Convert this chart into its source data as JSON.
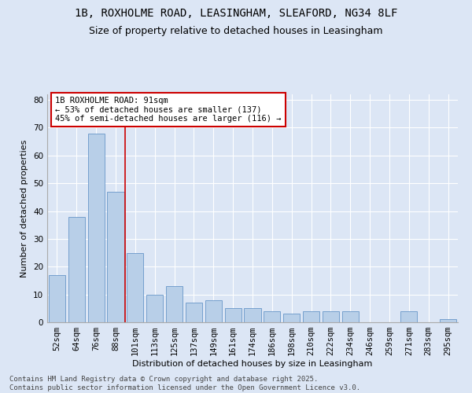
{
  "title_line1": "1B, ROXHOLME ROAD, LEASINGHAM, SLEAFORD, NG34 8LF",
  "title_line2": "Size of property relative to detached houses in Leasingham",
  "xlabel": "Distribution of detached houses by size in Leasingham",
  "ylabel": "Number of detached properties",
  "categories": [
    "52sqm",
    "64sqm",
    "76sqm",
    "88sqm",
    "101sqm",
    "113sqm",
    "125sqm",
    "137sqm",
    "149sqm",
    "161sqm",
    "174sqm",
    "186sqm",
    "198sqm",
    "210sqm",
    "222sqm",
    "234sqm",
    "246sqm",
    "259sqm",
    "271sqm",
    "283sqm",
    "295sqm"
  ],
  "values": [
    17,
    38,
    68,
    47,
    25,
    10,
    13,
    7,
    8,
    5,
    5,
    4,
    3,
    4,
    4,
    4,
    0,
    0,
    4,
    0,
    1
  ],
  "bar_color": "#b8cfe8",
  "bar_edge_color": "#6896c8",
  "highlight_line_color": "#cc0000",
  "annotation_text": "1B ROXHOLME ROAD: 91sqm\n← 53% of detached houses are smaller (137)\n45% of semi-detached houses are larger (116) →",
  "annotation_box_facecolor": "#ffffff",
  "annotation_box_edgecolor": "#cc0000",
  "ylim": [
    0,
    82
  ],
  "yticks": [
    0,
    10,
    20,
    30,
    40,
    50,
    60,
    70,
    80
  ],
  "background_color": "#dce6f5",
  "plot_bg_color": "#dce6f5",
  "footer_line1": "Contains HM Land Registry data © Crown copyright and database right 2025.",
  "footer_line2": "Contains public sector information licensed under the Open Government Licence v3.0.",
  "title_fontsize": 10,
  "subtitle_fontsize": 9,
  "axis_label_fontsize": 8,
  "tick_fontsize": 7.5,
  "annotation_fontsize": 7.5,
  "footer_fontsize": 6.5,
  "highlight_bar_index": 3,
  "red_line_x": 3.5
}
